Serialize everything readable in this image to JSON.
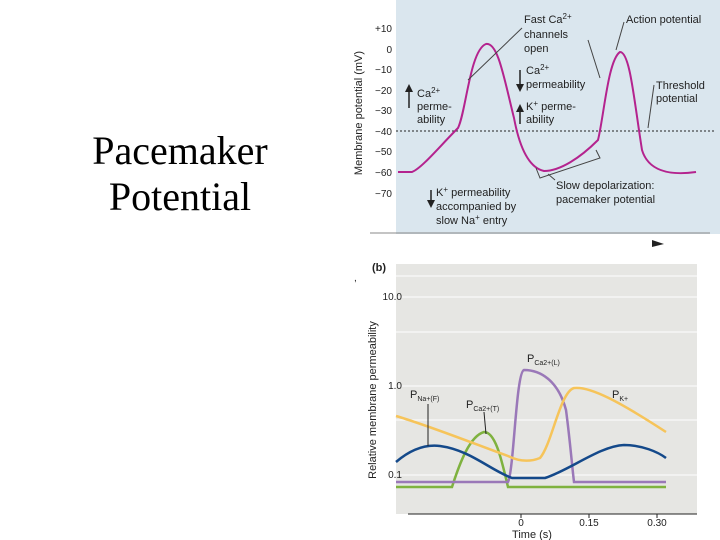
{
  "slide": {
    "title_line1": "Pacemaker",
    "title_line2": "Potential"
  },
  "panel_a": {
    "y_axis_label": "Membrane potential (mV)",
    "y_ticks": [
      "+10",
      "0",
      "−10",
      "−20",
      "−30",
      "−40",
      "−50",
      "−60",
      "−70"
    ],
    "annotations": {
      "fast_ca_line1": "Fast Ca",
      "fast_ca_sup": "2+",
      "fast_ca_line2": "channels",
      "fast_ca_line3": "open",
      "action_potential": "Action potential",
      "ca_perm_line1": "Ca",
      "ca_perm_sup": "2+",
      "ca_perm_line2": "permeability",
      "threshold_line1": "Threshold",
      "threshold_line2": "potential",
      "ca_left_line1": "Ca",
      "ca_left_sup": "2+",
      "ca_left_line2": "perme-",
      "ca_left_line3": "ability",
      "k_perm_line1": "K",
      "k_perm_sup": "+",
      "k_perm_line1b": " perme-",
      "k_perm_line2": "ability",
      "k_bottom_line1": "K",
      "k_bottom_sup": "+",
      "k_bottom_line1b": " permeability",
      "k_bottom_line2": "accompanied by",
      "k_bottom_line3": "slow Na",
      "k_bottom_sup2": "+",
      "k_bottom_line3b": " entry",
      "slow_depol_line1": "Slow depolarization:",
      "slow_depol_line2": "pacemaker potential"
    },
    "colors": {
      "background": "#dae6ee",
      "trace": "#b4238e"
    }
  },
  "panel_b": {
    "panel_label": "(b)",
    "y_axis_label": "Relative membrane permeability",
    "y_ticks": [
      "10.0",
      "1.0",
      "0.1"
    ],
    "x_ticks": [
      "0",
      "0.15",
      "0.30"
    ],
    "x_axis_label": "Time (s)",
    "series_labels": {
      "na_base": "P",
      "na_sub": "Na+(F)",
      "ca_t_base": "P",
      "ca_t_sub": "Ca2+(T)",
      "ca_l_base": "P",
      "ca_l_sub": "Ca2+(L)",
      "k_base": "P",
      "k_sub": "K+"
    },
    "colors": {
      "background": "#e6e6e3",
      "na": "#14498a",
      "ca_t": "#7fb23f",
      "ca_l": "#9a78b8",
      "k": "#f6c45a"
    }
  }
}
